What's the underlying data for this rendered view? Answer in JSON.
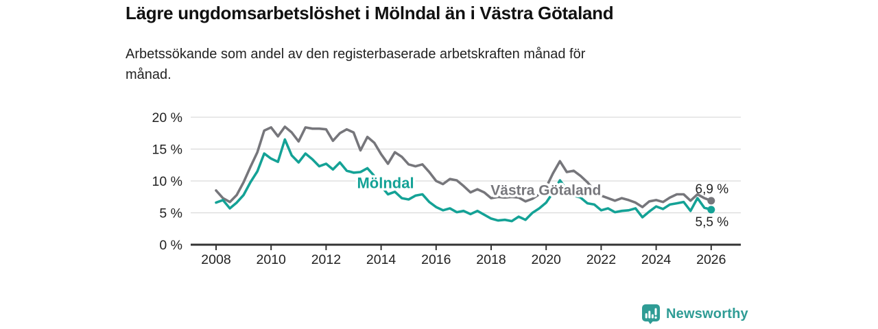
{
  "title": "Lägre ungdomsarbetslöshet i Mölndal än i Västra Götaland",
  "subtitle_lines": [
    "Arbetssökande som andel av den registerbaserade arbetskraften månad för",
    "månad."
  ],
  "footer": {
    "brand": "Newsworthy",
    "logo_icon": "bar-chart-speech-bubble-icon",
    "brand_color": "#2f9c95"
  },
  "colors": {
    "molndal": "#14a296",
    "vastra_gotaland": "#76767b",
    "grid": "#d9d9d9",
    "axis": "#333333",
    "axis_text": "#222222"
  },
  "chart_data": {
    "type": "line",
    "title": "Lägre ungdomsarbetslöshet i Mölndal än i Västra Götaland",
    "subtitle": "Arbetssökande som andel av den registerbaserade arbetskraften månad för månad.",
    "xlabel": "",
    "ylabel": "",
    "grid": "horizontal",
    "legend_position": "inline-labels",
    "x_start": 2008,
    "x_step": 0.25,
    "xlim": [
      2007.1,
      2027.1
    ],
    "ylim": [
      0,
      21.5
    ],
    "x_ticks": [
      2008,
      2010,
      2012,
      2014,
      2016,
      2018,
      2020,
      2022,
      2024,
      2026
    ],
    "y_ticks": [
      {
        "value": 0,
        "label": "0 %"
      },
      {
        "value": 5,
        "label": "5 %"
      },
      {
        "value": 10,
        "label": "10 %"
      },
      {
        "value": 15,
        "label": "15 %"
      },
      {
        "value": 20,
        "label": "20 %"
      }
    ],
    "series": [
      {
        "name": "Västra Götaland",
        "color": "#76767b",
        "values": [
          8.5,
          7.3,
          6.7,
          7.8,
          9.8,
          12.2,
          14.5,
          17.9,
          18.4,
          17.0,
          18.5,
          17.6,
          16.2,
          18.4,
          18.2,
          18.2,
          18.1,
          16.3,
          17.5,
          18.1,
          17.6,
          14.8,
          16.9,
          16.0,
          14.2,
          12.7,
          14.5,
          13.8,
          12.6,
          12.3,
          12.6,
          11.4,
          10.0,
          9.5,
          10.3,
          10.1,
          9.2,
          8.2,
          8.7,
          8.2,
          7.3,
          7.5,
          7.4,
          7.5,
          7.4,
          6.8,
          7.2,
          7.9,
          9.0,
          11.2,
          13.1,
          11.4,
          11.6,
          10.8,
          9.8,
          8.5,
          7.7,
          7.3,
          6.9,
          7.3,
          7.0,
          6.6,
          5.9,
          6.8,
          7.0,
          6.7,
          7.4,
          7.9,
          7.9,
          6.9,
          7.9,
          7.3,
          6.9
        ]
      },
      {
        "name": "Mölndal",
        "color": "#14a296",
        "values": [
          6.6,
          7.0,
          5.7,
          6.6,
          7.8,
          9.8,
          11.5,
          14.3,
          13.5,
          13.0,
          16.5,
          14.0,
          12.9,
          14.3,
          13.4,
          12.3,
          12.7,
          11.8,
          12.9,
          11.6,
          11.3,
          11.4,
          12.0,
          10.8,
          9.2,
          7.9,
          8.3,
          7.3,
          7.1,
          7.7,
          7.9,
          6.7,
          5.9,
          5.4,
          5.7,
          5.1,
          5.3,
          4.8,
          5.3,
          4.7,
          4.1,
          3.8,
          3.9,
          3.7,
          4.4,
          3.9,
          5.0,
          5.7,
          6.6,
          8.2,
          10.1,
          8.6,
          7.7,
          7.4,
          6.5,
          6.3,
          5.4,
          5.7,
          5.1,
          5.3,
          5.4,
          5.7,
          4.3,
          5.2,
          6.0,
          5.6,
          6.3,
          6.5,
          6.7,
          5.3,
          7.3,
          5.8,
          5.5
        ]
      }
    ],
    "series_labels": [
      {
        "text": "Mölndal",
        "color": "#14a296",
        "x_year": 2014.16,
        "y_pct": 9.6,
        "font_size": 22
      },
      {
        "text": "Västra Götaland",
        "color": "#77777c",
        "x_year": 2019.99,
        "y_pct": 8.55,
        "font_size": 21
      }
    ],
    "end_labels": [
      {
        "text": "6,9 %",
        "series": "Västra Götaland",
        "position": "above"
      },
      {
        "text": "5,5 %",
        "series": "Mölndal",
        "position": "below"
      }
    ]
  }
}
